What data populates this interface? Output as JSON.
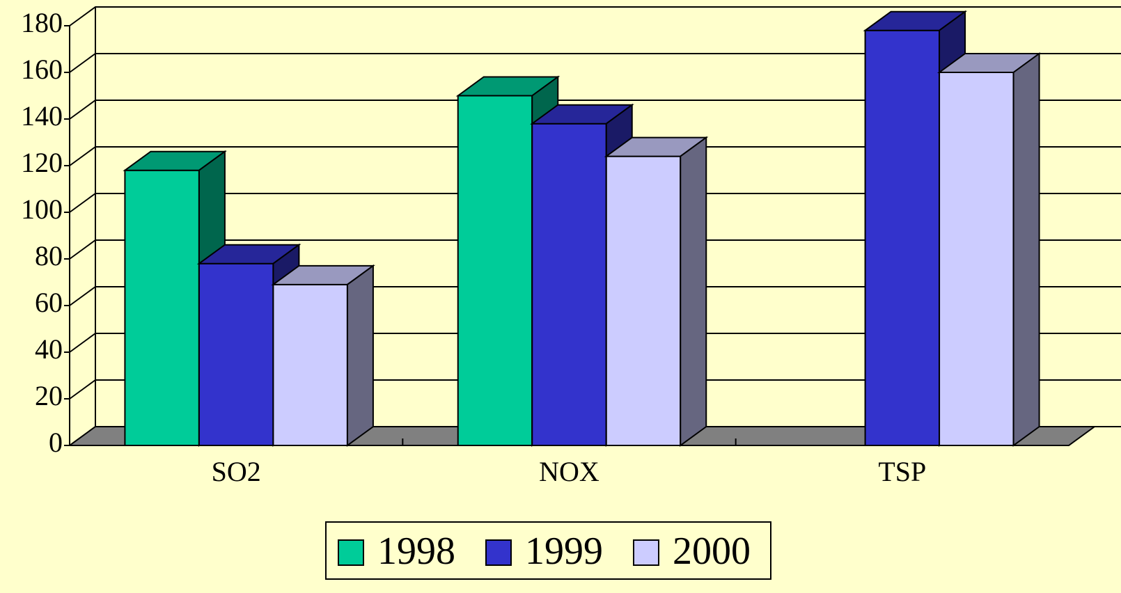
{
  "chart_data": {
    "type": "bar3d",
    "categories": [
      "SO2",
      "NOX",
      "TSP"
    ],
    "series": [
      {
        "name": "1998",
        "color": "#00cc99",
        "values": [
          118,
          150,
          null
        ]
      },
      {
        "name": "1999",
        "color": "#3333cc",
        "values": [
          78,
          138,
          178
        ]
      },
      {
        "name": "2000",
        "color": "#ccccff",
        "values": [
          69,
          124,
          160
        ]
      }
    ],
    "ylim": [
      0,
      180
    ],
    "yticks": [
      0,
      20,
      40,
      60,
      80,
      100,
      120,
      140,
      160,
      180
    ],
    "grid": true
  }
}
